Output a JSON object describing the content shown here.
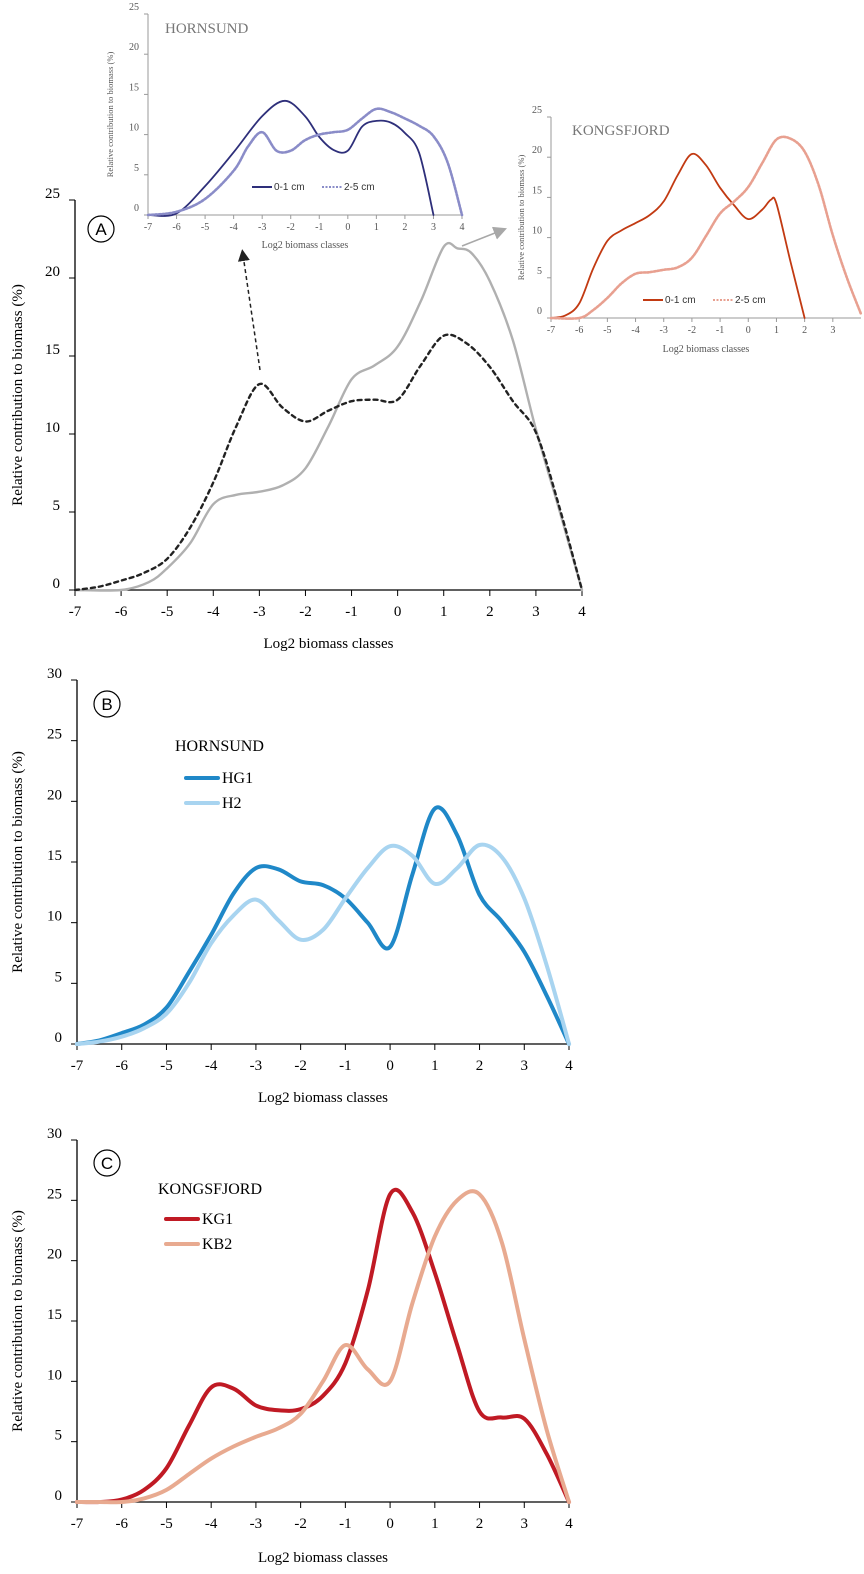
{
  "chart_data": [
    {
      "id": "main-a",
      "panel_label": "A",
      "type": "line",
      "title": "",
      "xlabel": "Log2 biomass classes",
      "ylabel": "Relative contribution to biomass (%)",
      "xlim": [
        -7,
        4
      ],
      "ylim": [
        0,
        25
      ],
      "xticks": [
        "-7",
        "-6",
        "-5",
        "-4",
        "-3",
        "-2",
        "-1",
        "0",
        "1",
        "2",
        "3",
        "4"
      ],
      "yticks": [
        "0",
        "5",
        "10",
        "15",
        "20",
        "25"
      ],
      "legend": null,
      "series": [
        {
          "name": "",
          "color": "#b0b0b0",
          "style": "solid",
          "points": [
            [
              -7,
              0
            ],
            [
              -6,
              0
            ],
            [
              -5.4,
              0.5
            ],
            [
              -5,
              1.4
            ],
            [
              -4.5,
              3.0
            ],
            [
              -4,
              5.5
            ],
            [
              -3.5,
              6.1
            ],
            [
              -3,
              6.3
            ],
            [
              -2.5,
              6.7
            ],
            [
              -2,
              7.8
            ],
            [
              -1.5,
              10.5
            ],
            [
              -1,
              13.5
            ],
            [
              -0.5,
              14.4
            ],
            [
              0,
              15.6
            ],
            [
              0.5,
              18.5
            ],
            [
              1,
              22.0
            ],
            [
              1.3,
              21.9
            ],
            [
              1.6,
              21.6
            ],
            [
              2,
              19.8
            ],
            [
              2.5,
              16.0
            ],
            [
              3,
              10.3
            ],
            [
              3.5,
              5.2
            ],
            [
              4,
              0
            ]
          ]
        },
        {
          "name": "",
          "color": "#222222",
          "style": "dashed",
          "points": [
            [
              -7,
              0
            ],
            [
              -6.5,
              0.2
            ],
            [
              -6,
              0.6
            ],
            [
              -5.5,
              1.1
            ],
            [
              -5,
              2.0
            ],
            [
              -4.5,
              4.0
            ],
            [
              -4,
              6.9
            ],
            [
              -3.5,
              10.5
            ],
            [
              -3,
              13.2
            ],
            [
              -2.5,
              11.7
            ],
            [
              -2,
              10.8
            ],
            [
              -1.5,
              11.5
            ],
            [
              -1,
              12.1
            ],
            [
              -0.5,
              12.2
            ],
            [
              0,
              12.2
            ],
            [
              0.5,
              14.4
            ],
            [
              1,
              16.3
            ],
            [
              1.5,
              15.8
            ],
            [
              2,
              14.3
            ],
            [
              2.5,
              12.1
            ],
            [
              3,
              10.1
            ],
            [
              3.5,
              5.4
            ],
            [
              4,
              0
            ]
          ]
        }
      ]
    },
    {
      "id": "inset-hornsund",
      "type": "line",
      "title": "HORNSUND",
      "xlabel": "Log2 biomass classes",
      "ylabel": "Relative contribution to biomass (%)",
      "xlim": [
        -7,
        4
      ],
      "ylim": [
        0,
        25
      ],
      "xticks": [
        "-7",
        "-6",
        "-5",
        "-4",
        "-3",
        "-2",
        "-1",
        "0",
        "1",
        "2",
        "3",
        "4"
      ],
      "yticks": [
        "0",
        "5",
        "10",
        "15",
        "20",
        "25"
      ],
      "legend": "bottom",
      "series": [
        {
          "name": "0-1 cm",
          "color": "#2e2f7a",
          "style": "solid",
          "points": [
            [
              -7,
              0
            ],
            [
              -6,
              0.2
            ],
            [
              -5,
              3.6
            ],
            [
              -4,
              7.8
            ],
            [
              -3,
              12.3
            ],
            [
              -2.2,
              14.2
            ],
            [
              -1.5,
              12.3
            ],
            [
              -1,
              9.7
            ],
            [
              -0.5,
              8.1
            ],
            [
              0,
              8.0
            ],
            [
              0.5,
              11.0
            ],
            [
              1,
              11.7
            ],
            [
              1.5,
              11.5
            ],
            [
              2,
              10.2
            ],
            [
              2.5,
              7.7
            ],
            [
              3,
              0
            ]
          ]
        },
        {
          "name": "2-5 cm",
          "color": "#8a8cc8",
          "style": "dotted",
          "points": [
            [
              -7,
              0
            ],
            [
              -6,
              0.4
            ],
            [
              -5,
              2.0
            ],
            [
              -4,
              5.5
            ],
            [
              -3.5,
              8.5
            ],
            [
              -3,
              10.3
            ],
            [
              -2.5,
              8.0
            ],
            [
              -2,
              8.0
            ],
            [
              -1.5,
              9.3
            ],
            [
              -1,
              10.0
            ],
            [
              -0.5,
              10.3
            ],
            [
              0,
              10.6
            ],
            [
              0.5,
              12.0
            ],
            [
              1,
              13.2
            ],
            [
              1.5,
              12.8
            ],
            [
              2,
              12.0
            ],
            [
              2.5,
              11.1
            ],
            [
              3,
              9.8
            ],
            [
              3.5,
              6.5
            ],
            [
              4,
              0
            ]
          ]
        }
      ]
    },
    {
      "id": "inset-kongsfjord",
      "type": "line",
      "title": "KONGSFJORD",
      "xlabel": "Log2 biomass classes",
      "ylabel": "Relative contribution to biomass (%)",
      "xlim": [
        -7,
        4
      ],
      "ylim": [
        0,
        25
      ],
      "xticks": [
        "-7",
        "-6",
        "-5",
        "-4",
        "-3",
        "-2",
        "-1",
        "0",
        "1",
        "2",
        "3"
      ],
      "yticks": [
        "0",
        "5",
        "10",
        "15",
        "20",
        "25"
      ],
      "legend": "bottom",
      "series": [
        {
          "name": "0-1 cm",
          "color": "#c23a12",
          "style": "solid",
          "points": [
            [
              -7,
              0
            ],
            [
              -6.5,
              0.3
            ],
            [
              -6,
              1.8
            ],
            [
              -5.5,
              6.2
            ],
            [
              -5,
              9.6
            ],
            [
              -4.5,
              10.9
            ],
            [
              -4,
              11.8
            ],
            [
              -3.5,
              12.8
            ],
            [
              -3,
              14.5
            ],
            [
              -2.5,
              17.8
            ],
            [
              -2,
              20.4
            ],
            [
              -1.5,
              19.0
            ],
            [
              -1,
              16.2
            ],
            [
              -0.5,
              14.0
            ],
            [
              0,
              12.3
            ],
            [
              0.5,
              13.5
            ],
            [
              0.8,
              14.7
            ],
            [
              1,
              14.2
            ],
            [
              1.5,
              7.0
            ],
            [
              2,
              0
            ]
          ]
        },
        {
          "name": "2-5 cm",
          "color": "#e8a090",
          "style": "dotted",
          "points": [
            [
              -7,
              0
            ],
            [
              -6,
              0
            ],
            [
              -5.5,
              1.0
            ],
            [
              -5,
              2.5
            ],
            [
              -4.5,
              4.3
            ],
            [
              -4,
              5.5
            ],
            [
              -3.5,
              5.7
            ],
            [
              -3,
              6.0
            ],
            [
              -2.5,
              6.3
            ],
            [
              -2,
              7.5
            ],
            [
              -1.5,
              10.2
            ],
            [
              -1,
              13.0
            ],
            [
              -0.5,
              14.5
            ],
            [
              0,
              16.3
            ],
            [
              0.5,
              19.3
            ],
            [
              1,
              22.2
            ],
            [
              1.5,
              22.3
            ],
            [
              2,
              20.7
            ],
            [
              2.5,
              16.5
            ],
            [
              3,
              10.3
            ],
            [
              3.5,
              5.0
            ],
            [
              4,
              0.5
            ]
          ]
        }
      ]
    },
    {
      "id": "panel-b",
      "panel_label": "B",
      "type": "line",
      "title": "HORNSUND",
      "xlabel": "Log2 biomass classes",
      "ylabel": "Relative contribution to biomass (%)",
      "xlim": [
        -7,
        4
      ],
      "ylim": [
        0,
        30
      ],
      "xticks": [
        "-7",
        "-6",
        "-5",
        "-4",
        "-3",
        "-2",
        "-1",
        "0",
        "1",
        "2",
        "3",
        "4"
      ],
      "yticks": [
        "0",
        "5",
        "10",
        "15",
        "20",
        "25",
        "30"
      ],
      "legend": "top-left",
      "series": [
        {
          "name": "HG1",
          "color": "#1f88c8",
          "style": "solid",
          "points": [
            [
              -7,
              0
            ],
            [
              -6.5,
              0.3
            ],
            [
              -6,
              0.9
            ],
            [
              -5.5,
              1.6
            ],
            [
              -5,
              3.0
            ],
            [
              -4.5,
              5.9
            ],
            [
              -4,
              9.0
            ],
            [
              -3.5,
              12.4
            ],
            [
              -3,
              14.5
            ],
            [
              -2.5,
              14.4
            ],
            [
              -2,
              13.4
            ],
            [
              -1.5,
              13.1
            ],
            [
              -1,
              12.0
            ],
            [
              -0.5,
              10.0
            ],
            [
              0,
              8.0
            ],
            [
              0.5,
              14.0
            ],
            [
              1,
              19.4
            ],
            [
              1.5,
              17.2
            ],
            [
              2,
              12.3
            ],
            [
              2.5,
              10.1
            ],
            [
              3,
              7.6
            ],
            [
              3.5,
              4.0
            ],
            [
              4,
              0
            ]
          ]
        },
        {
          "name": "H2",
          "color": "#a8d4f0",
          "style": "solid",
          "points": [
            [
              -7,
              0
            ],
            [
              -6.5,
              0.2
            ],
            [
              -6,
              0.6
            ],
            [
              -5.5,
              1.3
            ],
            [
              -5,
              2.5
            ],
            [
              -4.5,
              5.0
            ],
            [
              -4,
              8.3
            ],
            [
              -3.5,
              10.6
            ],
            [
              -3,
              11.9
            ],
            [
              -2.5,
              10.2
            ],
            [
              -2,
              8.6
            ],
            [
              -1.5,
              9.4
            ],
            [
              -1,
              12.0
            ],
            [
              -0.5,
              14.5
            ],
            [
              0,
              16.3
            ],
            [
              0.5,
              15.5
            ],
            [
              1,
              13.2
            ],
            [
              1.5,
              14.5
            ],
            [
              2,
              16.4
            ],
            [
              2.5,
              15.4
            ],
            [
              3,
              12.0
            ],
            [
              3.5,
              6.5
            ],
            [
              4,
              0
            ]
          ]
        }
      ]
    },
    {
      "id": "panel-c",
      "panel_label": "C",
      "type": "line",
      "title": "KONGSFJORD",
      "xlabel": "Log2 biomass classes",
      "ylabel": "Relative contribution to biomass (%)",
      "xlim": [
        -7,
        4
      ],
      "ylim": [
        0,
        30
      ],
      "xticks": [
        "-7",
        "-6",
        "-5",
        "-4",
        "-3",
        "-2",
        "-1",
        "0",
        "1",
        "2",
        "3",
        "4"
      ],
      "yticks": [
        "0",
        "5",
        "10",
        "15",
        "20",
        "25",
        "30"
      ],
      "legend": "top-left",
      "series": [
        {
          "name": "KG1",
          "color": "#c01a24",
          "style": "solid",
          "points": [
            [
              -7,
              0
            ],
            [
              -6.5,
              0
            ],
            [
              -6,
              0.2
            ],
            [
              -5.5,
              1.0
            ],
            [
              -5,
              2.8
            ],
            [
              -4.5,
              6.3
            ],
            [
              -4,
              9.5
            ],
            [
              -3.5,
              9.4
            ],
            [
              -3,
              8.0
            ],
            [
              -2.5,
              7.6
            ],
            [
              -2,
              7.7
            ],
            [
              -1.5,
              8.8
            ],
            [
              -1,
              11.5
            ],
            [
              -0.5,
              17.5
            ],
            [
              0,
              25.5
            ],
            [
              0.5,
              24.0
            ],
            [
              1,
              19.0
            ],
            [
              1.5,
              13.0
            ],
            [
              2,
              7.5
            ],
            [
              2.5,
              7.0
            ],
            [
              3,
              6.9
            ],
            [
              3.5,
              4.0
            ],
            [
              4,
              0
            ]
          ]
        },
        {
          "name": "KB2",
          "color": "#e8aa90",
          "style": "solid",
          "points": [
            [
              -7,
              0
            ],
            [
              -6.5,
              0
            ],
            [
              -6,
              0
            ],
            [
              -5.5,
              0.3
            ],
            [
              -5,
              1.0
            ],
            [
              -4.5,
              2.3
            ],
            [
              -4,
              3.6
            ],
            [
              -3.5,
              4.6
            ],
            [
              -3,
              5.4
            ],
            [
              -2.5,
              6.1
            ],
            [
              -2,
              7.3
            ],
            [
              -1.5,
              10.0
            ],
            [
              -1,
              13.0
            ],
            [
              -0.5,
              11.0
            ],
            [
              0,
              10.0
            ],
            [
              0.5,
              16.5
            ],
            [
              1,
              22.0
            ],
            [
              1.5,
              25.0
            ],
            [
              2,
              25.5
            ],
            [
              2.5,
              21.5
            ],
            [
              3,
              13.5
            ],
            [
              3.5,
              6.0
            ],
            [
              4,
              0
            ]
          ]
        }
      ]
    }
  ]
}
